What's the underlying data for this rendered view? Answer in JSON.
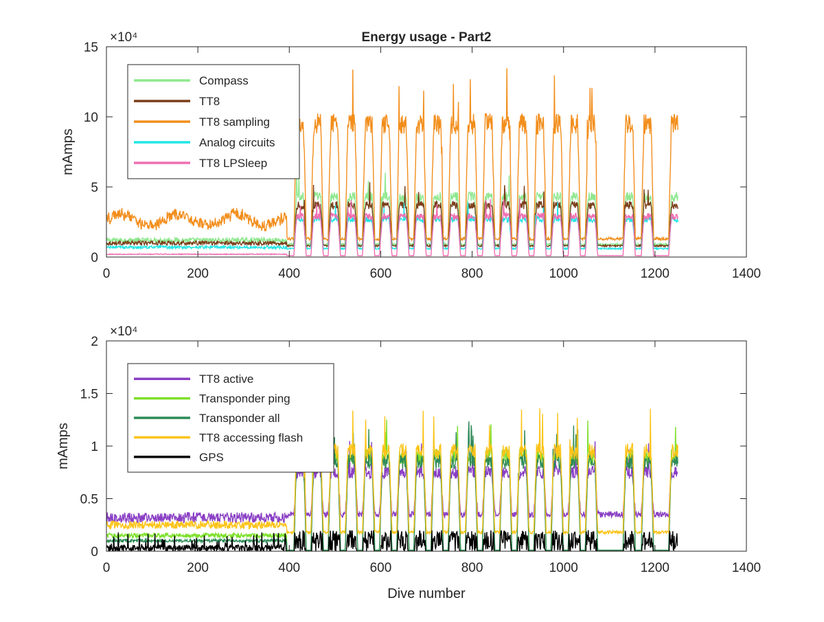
{
  "chart_data": [
    {
      "type": "line",
      "title": "Energy usage - Part2",
      "xlabel": "",
      "ylabel": "mAmps",
      "xlim": [
        0,
        1400
      ],
      "ylim": [
        0,
        150000
      ],
      "y_scale_label": "×10⁴",
      "x_ticks": [
        "0",
        "200",
        "400",
        "600",
        "800",
        "1000",
        "1200",
        "1400"
      ],
      "y_ticks": [
        "0",
        "5",
        "10",
        "15"
      ],
      "grid": false,
      "legend_position": "top-left",
      "series": [
        {
          "name": "Compass",
          "color": "#8ee88e",
          "base": 12000,
          "peak": 43000,
          "valley": 9000
        },
        {
          "name": "TT8",
          "color": "#7a3f1a",
          "base": 10000,
          "peak": 37000,
          "valley": 8000
        },
        {
          "name": "TT8 sampling",
          "color": "#f28e1c",
          "base": 25000,
          "peak": 95000,
          "valley": 13000
        },
        {
          "name": "Analog circuits",
          "color": "#22e6e6",
          "base": 7000,
          "peak": 27000,
          "valley": 6000
        },
        {
          "name": "TT8 LPSleep",
          "color": "#f06eb0",
          "base": 2000,
          "peak": 29000,
          "valley": 1000
        }
      ]
    },
    {
      "type": "line",
      "title": "",
      "xlabel": "Dive number",
      "ylabel": "mAmps",
      "xlim": [
        0,
        1400
      ],
      "ylim": [
        0,
        20000
      ],
      "y_scale_label": "×10⁴",
      "x_ticks": [
        "0",
        "200",
        "400",
        "600",
        "800",
        "1000",
        "1200",
        "1400"
      ],
      "y_ticks": [
        "0",
        "0.5",
        "1",
        "1.5",
        "2"
      ],
      "grid": false,
      "legend_position": "top-left",
      "series": [
        {
          "name": "TT8 active",
          "color": "#8a3fc4",
          "base": 3200,
          "peak": 7500,
          "valley": 3500
        },
        {
          "name": "Transponder ping",
          "color": "#7de02a",
          "base": 1500,
          "peak": 9000,
          "valley": 0
        },
        {
          "name": "Transponder all",
          "color": "#2e8b57",
          "base": 1000,
          "peak": 8500,
          "valley": 100
        },
        {
          "name": "TT8 accessing flash",
          "color": "#fcc419",
          "base": 2500,
          "peak": 9500,
          "valley": 1800
        },
        {
          "name": "GPS",
          "color": "#000000",
          "base": 600,
          "peak": 2000,
          "valley": 0
        }
      ]
    }
  ]
}
